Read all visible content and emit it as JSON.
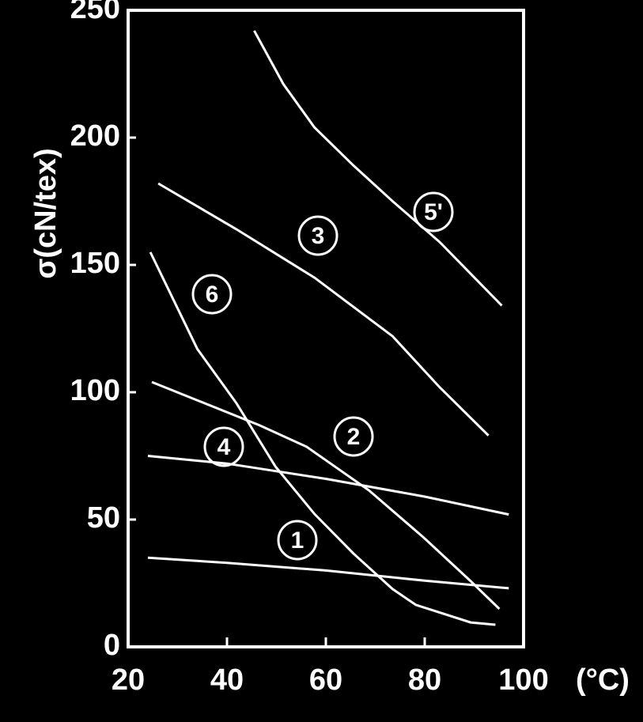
{
  "chart_data": {
    "type": "line",
    "y_label": "σ(cN/tex)",
    "x_label": "(°C)",
    "xlim": [
      20,
      100
    ],
    "xticks": [
      20,
      40,
      60,
      80,
      100
    ],
    "ylim": [
      0,
      250
    ],
    "yticks": [
      0,
      50,
      100,
      150,
      200,
      250
    ],
    "background": "#000000",
    "series": [
      {
        "name": "1",
        "color": "#ffffff",
        "x": [
          24,
          40,
          60,
          80,
          97
        ],
        "values": [
          35,
          33,
          30,
          26,
          23
        ]
      },
      {
        "name": "2",
        "color": "#ffffff",
        "x": [
          24.8,
          46.6,
          56.1,
          68.7,
          79.8,
          89.3,
          95.1
        ],
        "values": [
          104,
          87,
          78.6,
          61.5,
          42.9,
          25.8,
          14.9
        ]
      },
      {
        "name": "3",
        "color": "#ffffff",
        "x": [
          26.1,
          41.9,
          57.7,
          73.5,
          83,
          92.9
        ],
        "values": [
          182,
          164,
          145,
          122,
          102,
          83
        ]
      },
      {
        "name": "4",
        "color": "#ffffff",
        "x": [
          24,
          40,
          60,
          80,
          97
        ],
        "values": [
          75,
          72,
          66,
          59,
          52
        ]
      },
      {
        "name": "5'",
        "color": "#ffffff",
        "x": [
          45.5,
          51.4,
          57.7,
          65.6,
          73.5,
          83,
          95.6
        ],
        "values": [
          242,
          221,
          204,
          189,
          175,
          159,
          134
        ]
      },
      {
        "name": "6",
        "color": "#ffffff",
        "x": [
          24.5,
          34,
          41.9,
          49.8,
          57.7,
          65.6,
          73.5,
          78.2,
          89.3,
          94.3
        ],
        "values": [
          155,
          117,
          95.7,
          70.8,
          52.2,
          36.6,
          22.7,
          16.5,
          9.6,
          8.7
        ]
      }
    ]
  }
}
